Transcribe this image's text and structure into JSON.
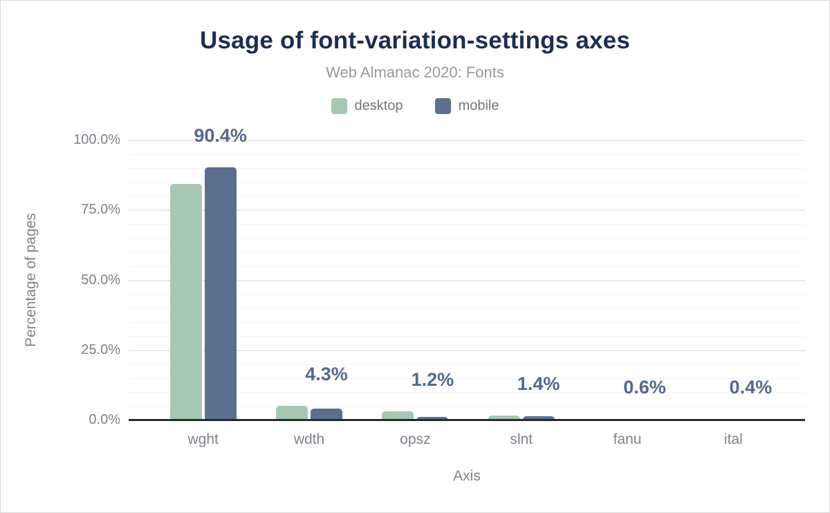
{
  "header": {
    "title": "Usage of font-variation-settings axes",
    "subtitle": "Web Almanac 2020: Fonts"
  },
  "legend": {
    "items": [
      {
        "label": "desktop",
        "color": "#a5c8b3"
      },
      {
        "label": "mobile",
        "color": "#5b7091"
      }
    ]
  },
  "axes": {
    "x_title": "Axis",
    "y_title": "Percentage of pages"
  },
  "colors": {
    "title_text": "#1c2e51",
    "subtitle_text": "#97999e",
    "axis_text": "#7e828a",
    "value_label_text": "#54688c",
    "desktop_bar": "#a5c8b3",
    "mobile_bar": "#5b7091",
    "axis_line": "#28292e"
  },
  "chart_data": {
    "type": "bar",
    "title": "Usage of font-variation-settings axes",
    "subtitle": "Web Almanac 2020: Fonts",
    "categories": [
      "wght",
      "wdth",
      "opsz",
      "slnt",
      "fanu",
      "ital"
    ],
    "series": [
      {
        "name": "desktop",
        "color": "#a5c8b3",
        "values": [
          84.4,
          5.3,
          3.1,
          1.8,
          0.5,
          0.5
        ]
      },
      {
        "name": "mobile",
        "color": "#5b7091",
        "values": [
          90.4,
          4.3,
          1.2,
          1.4,
          0.6,
          0.4
        ]
      }
    ],
    "data_labels": [
      "90.4%",
      "4.3%",
      "1.2%",
      "1.4%",
      "0.6%",
      "0.4%"
    ],
    "data_labels_series": "mobile",
    "xlabel": "Axis",
    "ylabel": "Percentage of pages",
    "ylim": [
      0,
      100
    ],
    "yticks": [
      {
        "value": 0,
        "label": "0.0%"
      },
      {
        "value": 25,
        "label": "25.0%"
      },
      {
        "value": 50,
        "label": "50.0%"
      },
      {
        "value": 75,
        "label": "75.0%"
      },
      {
        "value": 100,
        "label": "100.0%"
      }
    ],
    "grid": {
      "major_step": 25,
      "minor_step": 5,
      "orientation": "horizontal"
    },
    "legend_position": "top"
  }
}
